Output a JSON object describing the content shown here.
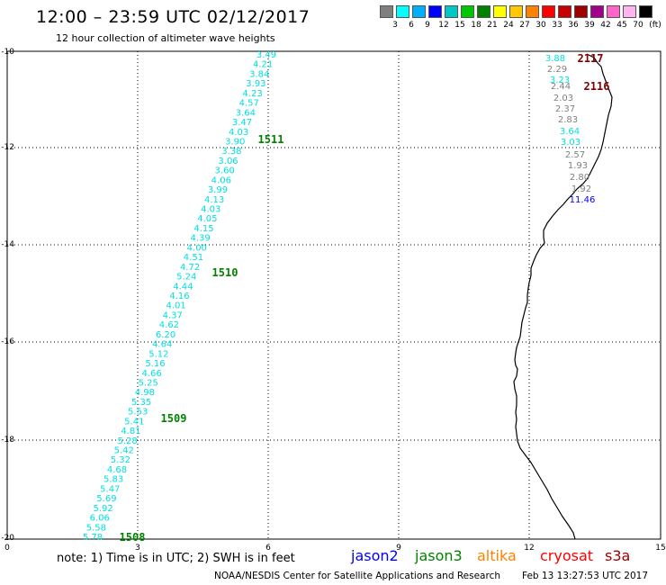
{
  "header": {
    "title": "12:00 – 23:59 UTC 02/12/2017",
    "subtitle": "12 hour collection of altimeter wave heights"
  },
  "legend": {
    "unit": "(ft)",
    "colors": [
      "#7f7f7f",
      "#00ffff",
      "#00b0ff",
      "#0000ff",
      "#00c8c8",
      "#00c800",
      "#008200",
      "#ffff00",
      "#ffc800",
      "#ff8200",
      "#ff0000",
      "#c80000",
      "#a00000",
      "#a0008c",
      "#ff64c8",
      "#ffb4f0",
      "#000000"
    ],
    "labels": [
      "3",
      "6",
      "9",
      "12",
      "15",
      "18",
      "21",
      "24",
      "27",
      "30",
      "33",
      "36",
      "39",
      "42",
      "45",
      "70"
    ]
  },
  "axes": {
    "x_ticks": [
      "0",
      "3",
      "6",
      "9",
      "12",
      "15"
    ],
    "y_ticks": [
      "-10",
      "-12",
      "-14",
      "-16",
      "-18",
      "-20"
    ]
  },
  "tracks": [
    {
      "name": "jason3-pass",
      "color": "#00e0e0",
      "values": [
        "3.49",
        "4.21",
        "3.84",
        "3.93",
        "4.23",
        "4.57",
        "3.64",
        "3.47",
        "4.03",
        "3.90",
        "3.38",
        "3.06",
        "3.60",
        "4.06",
        "3.99",
        "4.13",
        "4.03",
        "4.05",
        "4.15",
        "4.39",
        "4.00",
        "4.51",
        "4.72",
        "5.24",
        "4.44",
        "4.16",
        "4.01",
        "4.37",
        "4.62",
        "6.20",
        "4.64",
        "5.12",
        "5.16",
        "4.66",
        "5.25",
        "4.98",
        "5.35",
        "5.53",
        "5.41",
        "4.81",
        "5.28",
        "5.42",
        "5.32",
        "4.68",
        "5.83",
        "5.47",
        "5.69",
        "5.92",
        "6.06",
        "5.58",
        "5.78"
      ]
    },
    {
      "name": "coastal-pass",
      "values": [
        {
          "v": "3.88",
          "c": "#00e0e0"
        },
        {
          "v": "2.29",
          "c": "#808080"
        },
        {
          "v": "3.23",
          "c": "#00e0e0"
        },
        {
          "v": "2.44",
          "c": "#808080"
        },
        {
          "v": "2.03",
          "c": "#808080"
        },
        {
          "v": "2.37",
          "c": "#808080"
        },
        {
          "v": "2.83",
          "c": "#808080"
        },
        {
          "v": "3.64",
          "c": "#00e0e0"
        },
        {
          "v": "3.03",
          "c": "#00e0e0"
        },
        {
          "v": "2.57",
          "c": "#808080"
        },
        {
          "v": "1.93",
          "c": "#808080"
        },
        {
          "v": "2.80",
          "c": "#808080"
        },
        {
          "v": "1.92",
          "c": "#808080"
        },
        {
          "v": "11.46",
          "c": "#0000ff"
        }
      ]
    }
  ],
  "time_labels": [
    {
      "text": "1511",
      "color": "#008200"
    },
    {
      "text": "1510",
      "color": "#008200"
    },
    {
      "text": "1509",
      "color": "#008200"
    },
    {
      "text": "1508",
      "color": "#008200"
    },
    {
      "text": "2117",
      "color": "#800000"
    },
    {
      "text": "2116",
      "color": "#800000"
    }
  ],
  "note": "note: 1) Time is in UTC; 2) SWH is in feet",
  "satellites": [
    {
      "name": "jason2",
      "color": "#0000ff"
    },
    {
      "name": "jason3",
      "color": "#008200"
    },
    {
      "name": "altika",
      "color": "#ff8200"
    },
    {
      "name": "cryosat",
      "color": "#ff0000"
    },
    {
      "name": "s3a",
      "color": "#a00000"
    }
  ],
  "footer": {
    "center": "NOAA/NESDIS Center for Satellite Applications and Research",
    "timestamp": "Feb 13 13:27:53 UTC 2017"
  }
}
